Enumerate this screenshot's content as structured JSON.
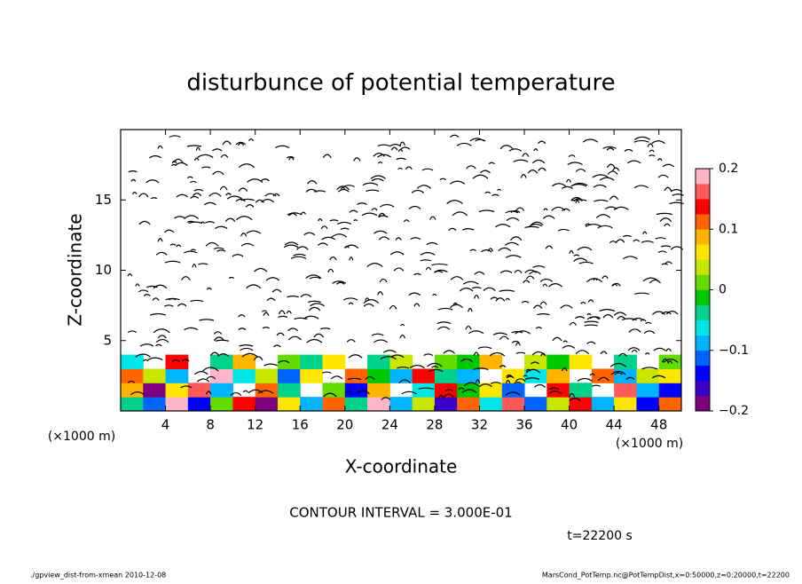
{
  "chart_data": {
    "type": "contour",
    "title": "disturbunce of potential temperature",
    "x_label": "X-coordinate",
    "y_label": "Z-coordinate",
    "x_unit_left": "(×1000 m)",
    "x_unit_right": "(×1000 m)",
    "contour_note": "CONTOUR INTERVAL = 3.000E-01",
    "time_note": "t=22200 s",
    "footer_left": "./gpview_dist-from-xmean  2010-12-08",
    "footer_right": "MarsCond_PotTemp.nc@PotTempDist,x=0:50000,z=0:20000,t=22200",
    "xlim": [
      0,
      50
    ],
    "ylim": [
      0,
      20
    ],
    "xticks": [
      4,
      8,
      12,
      16,
      20,
      24,
      28,
      32,
      36,
      40,
      44,
      48
    ],
    "yticks": [
      5,
      10,
      15
    ],
    "clim": [
      -0.2,
      0.2
    ],
    "cticks": [
      0.2,
      0.1,
      0,
      {
        "value": -0.1,
        "label": "−0.1"
      },
      {
        "value": -0.2,
        "label": "−0.2"
      }
    ],
    "colormap": [
      "#7f007f",
      "#3c00c8",
      "#0000ff",
      "#0064ff",
      "#00b4ff",
      "#00e6e6",
      "#00d28c",
      "#00c800",
      "#64dc00",
      "#c8e600",
      "#ffe600",
      "#ffb400",
      "#ff6400",
      "#ff0000",
      "#ff5a5a",
      "#ffb4c8"
    ],
    "field": {
      "x": [
        1,
        3,
        5,
        7,
        9,
        11,
        13,
        15,
        17,
        19,
        21,
        23,
        25,
        27,
        29,
        31,
        33,
        35,
        37,
        39,
        41,
        43,
        45,
        47,
        49
      ],
      "z": [
        0.5,
        1.5,
        2.5,
        3.5
      ],
      "values": [
        [
          -0.05,
          -0.12,
          0.18,
          -0.15,
          0.02,
          0.15,
          -0.18,
          0.05,
          -0.08,
          0.12,
          -0.03,
          0.19,
          -0.1,
          0.04,
          -0.16,
          0.1,
          -0.06,
          0.17,
          -0.12,
          0.03,
          0.14,
          -0.09,
          0.06,
          -0.15,
          0.11
        ],
        [
          0.08,
          -0.18,
          0.05,
          0.16,
          -0.1,
          null,
          0.12,
          -0.05,
          null,
          0.02,
          -0.14,
          0.08,
          null,
          -0.07,
          0.15,
          -0.02,
          0.06,
          -0.11,
          null,
          0.13,
          -0.04,
          null,
          0.16,
          -0.08,
          -0.13
        ],
        [
          0.12,
          0.04,
          -0.09,
          null,
          0.18,
          -0.06,
          0.03,
          -0.12,
          0.07,
          null,
          0.1,
          -0.02,
          -0.08,
          0.14,
          -0.03,
          -0.1,
          null,
          0.05,
          -0.06,
          0.09,
          null,
          0.12,
          -0.1,
          0.04,
          0.07
        ],
        [
          -0.06,
          null,
          0.14,
          null,
          -0.04,
          0.09,
          null,
          0.02,
          -0.05,
          0.06,
          null,
          -0.03,
          0.04,
          null,
          0.01,
          -0.02,
          0.08,
          null,
          0.03,
          -0.01,
          0.05,
          null,
          -0.04,
          null,
          0.02
        ]
      ]
    }
  }
}
